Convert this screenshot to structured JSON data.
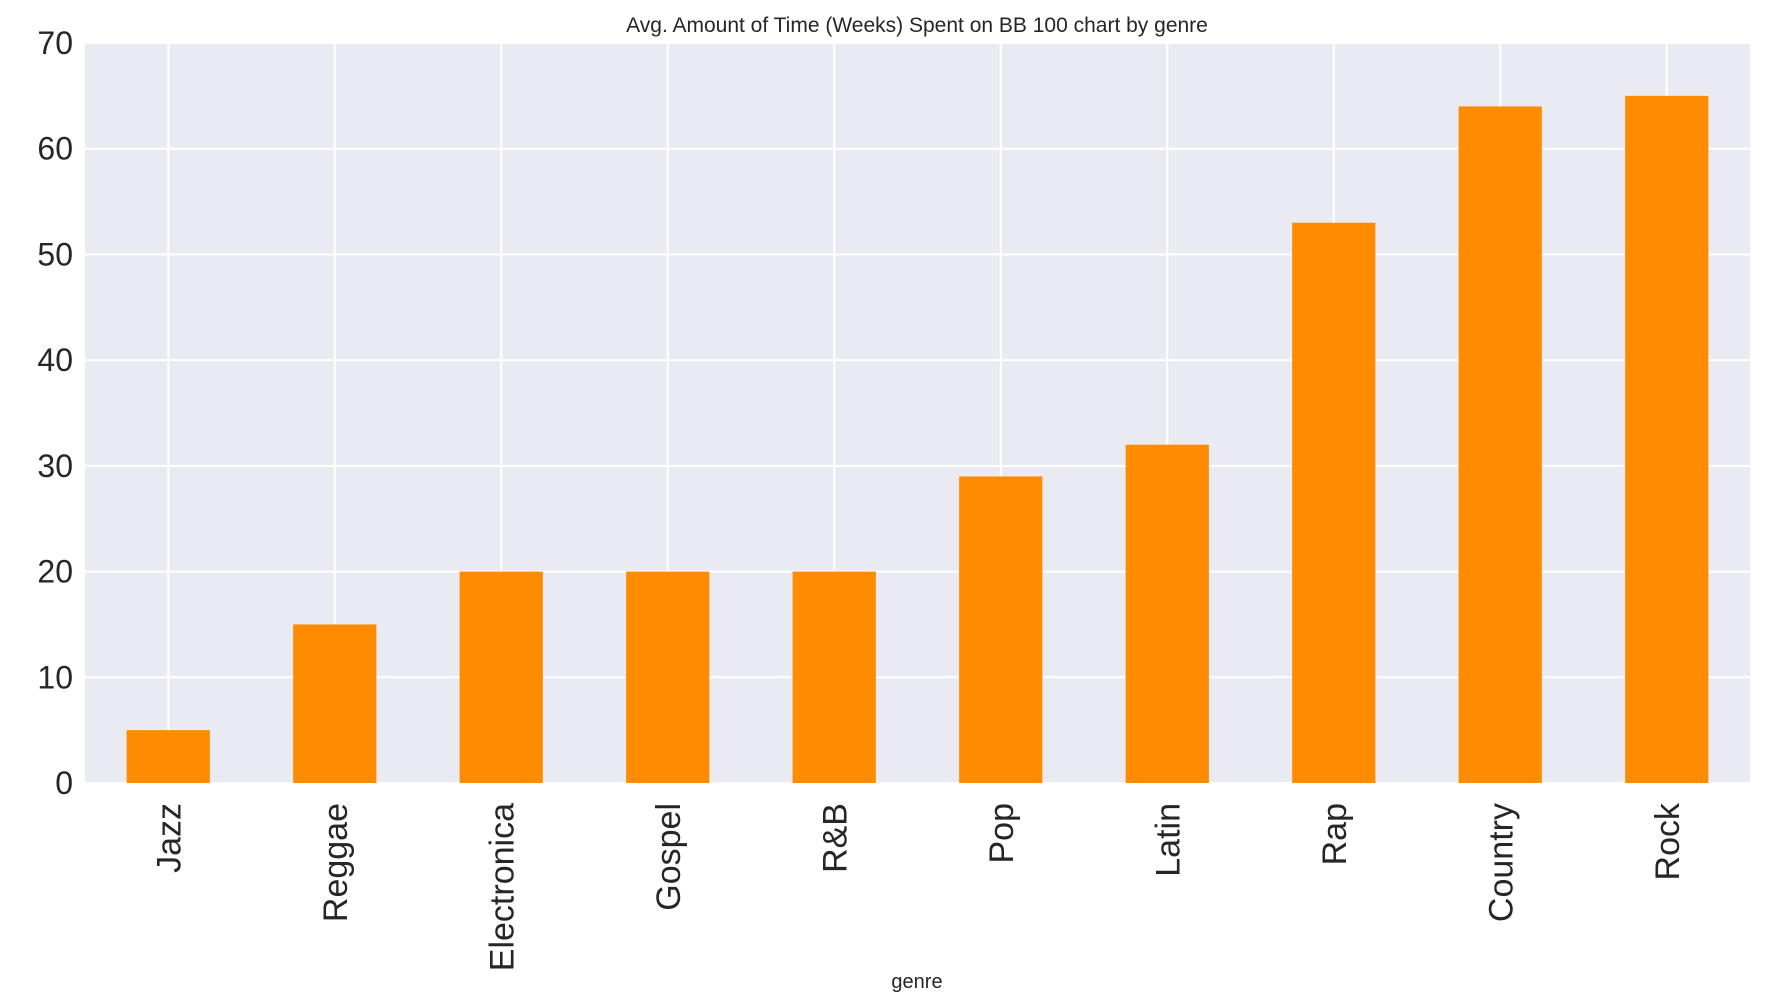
{
  "chart_data": {
    "type": "bar",
    "title": "Avg. Amount of Time (Weeks) Spent on BB 100 chart by genre",
    "xlabel": "genre",
    "ylabel": "",
    "categories": [
      "Jazz",
      "Reggae",
      "Electronica",
      "Gospel",
      "R&B",
      "Pop",
      "Latin",
      "Rap",
      "Country",
      "Rock"
    ],
    "values": [
      5,
      15,
      20,
      20,
      20,
      29,
      32,
      53,
      64,
      65
    ],
    "ylim": [
      0,
      70
    ],
    "yticks": [
      "0",
      "10",
      "20",
      "30",
      "40",
      "50",
      "60",
      "70"
    ],
    "grid": true,
    "legend": "none",
    "colors": {
      "bar": "#ff8c00",
      "plot_background": "#eaeaf2",
      "grid": "#ffffff",
      "text": "#262626"
    }
  }
}
